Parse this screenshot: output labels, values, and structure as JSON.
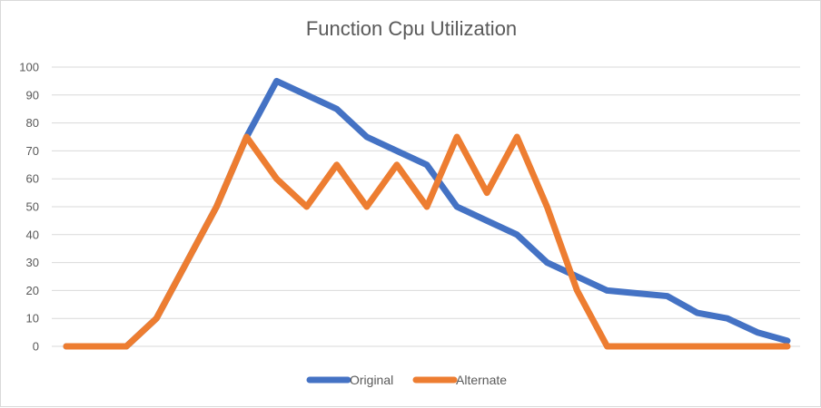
{
  "chart_data": {
    "type": "line",
    "title": "Function Cpu Utilization",
    "xlabel": "",
    "ylabel": "",
    "ylim": [
      0,
      100
    ],
    "yticks": [
      0,
      10,
      20,
      30,
      40,
      50,
      60,
      70,
      80,
      90,
      100
    ],
    "grid": true,
    "legend_position": "bottom",
    "series": [
      {
        "name": "Original",
        "color": "#4472c4",
        "values": [
          0,
          0,
          0,
          10,
          30,
          50,
          75,
          95,
          90,
          85,
          75,
          70,
          65,
          50,
          45,
          40,
          30,
          25,
          20,
          19,
          18,
          12,
          10,
          5,
          2
        ]
      },
      {
        "name": "Alternate",
        "color": "#ed7d31",
        "values": [
          0,
          0,
          0,
          10,
          30,
          50,
          75,
          60,
          50,
          65,
          50,
          65,
          50,
          75,
          55,
          75,
          50,
          20,
          0,
          0,
          0,
          0,
          0,
          0,
          0
        ]
      }
    ]
  }
}
